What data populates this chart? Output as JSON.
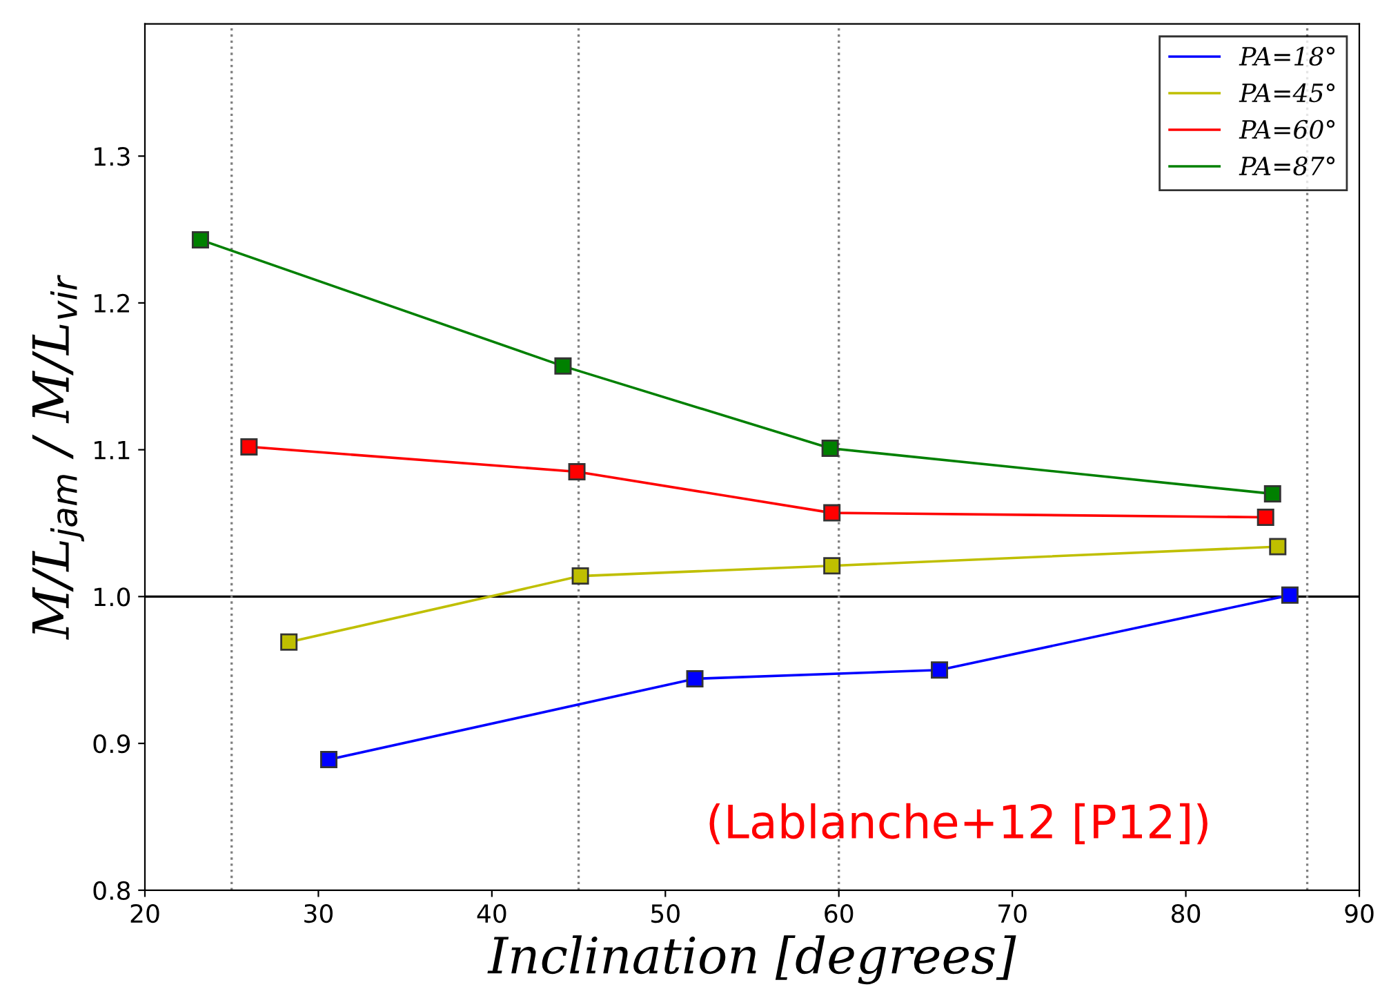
{
  "chart_data": {
    "type": "line",
    "xlabel": "Inclination [degrees]",
    "ylabel": "M/L$_{jam}$ / M/L$_{vir}$",
    "xlim": [
      20,
      90
    ],
    "ylim": [
      0.8,
      1.39
    ],
    "xticks": [
      20,
      30,
      40,
      50,
      60,
      70,
      80,
      90
    ],
    "yticks": [
      0.8,
      0.9,
      {
        "value": 1,
        "label": "1.0"
      },
      1.1,
      1.2,
      1.3
    ],
    "marker": "square",
    "legend": "top right",
    "grid": false,
    "series": [
      {
        "name": "PA=18°",
        "color": "#0000ff",
        "x": [
          30.6,
          51.7,
          65.8,
          86.0
        ],
        "values": [
          0.889,
          0.944,
          0.95,
          1.001
        ]
      },
      {
        "name": "PA=45°",
        "color": "#bfbf00",
        "x": [
          28.3,
          45.1,
          59.6,
          85.3
        ],
        "values": [
          0.969,
          1.014,
          1.021,
          1.034
        ]
      },
      {
        "name": "PA=60°",
        "color": "#ff0000",
        "x": [
          26.0,
          44.9,
          59.6,
          84.6
        ],
        "values": [
          1.102,
          1.085,
          1.057,
          1.054
        ]
      },
      {
        "name": "PA=87°",
        "color": "#008000",
        "x": [
          23.2,
          44.1,
          59.5,
          85.0
        ],
        "values": [
          1.243,
          1.157,
          1.101,
          1.07
        ]
      }
    ],
    "ref_lines": [
      {
        "axis": "y",
        "value": 1.0,
        "color": "#000000",
        "line_style": "solid"
      },
      {
        "axis": "x",
        "value": 25,
        "color": "#808080",
        "line_style": "dotted"
      },
      {
        "axis": "x",
        "value": 45,
        "color": "#808080",
        "line_style": "dotted"
      },
      {
        "axis": "x",
        "value": 60,
        "color": "#808080",
        "line_style": "dotted"
      },
      {
        "axis": "x",
        "value": 87,
        "color": "#808080",
        "line_style": "dotted"
      }
    ],
    "annotations": [
      "(Lablanche+12 [P12])"
    ]
  }
}
